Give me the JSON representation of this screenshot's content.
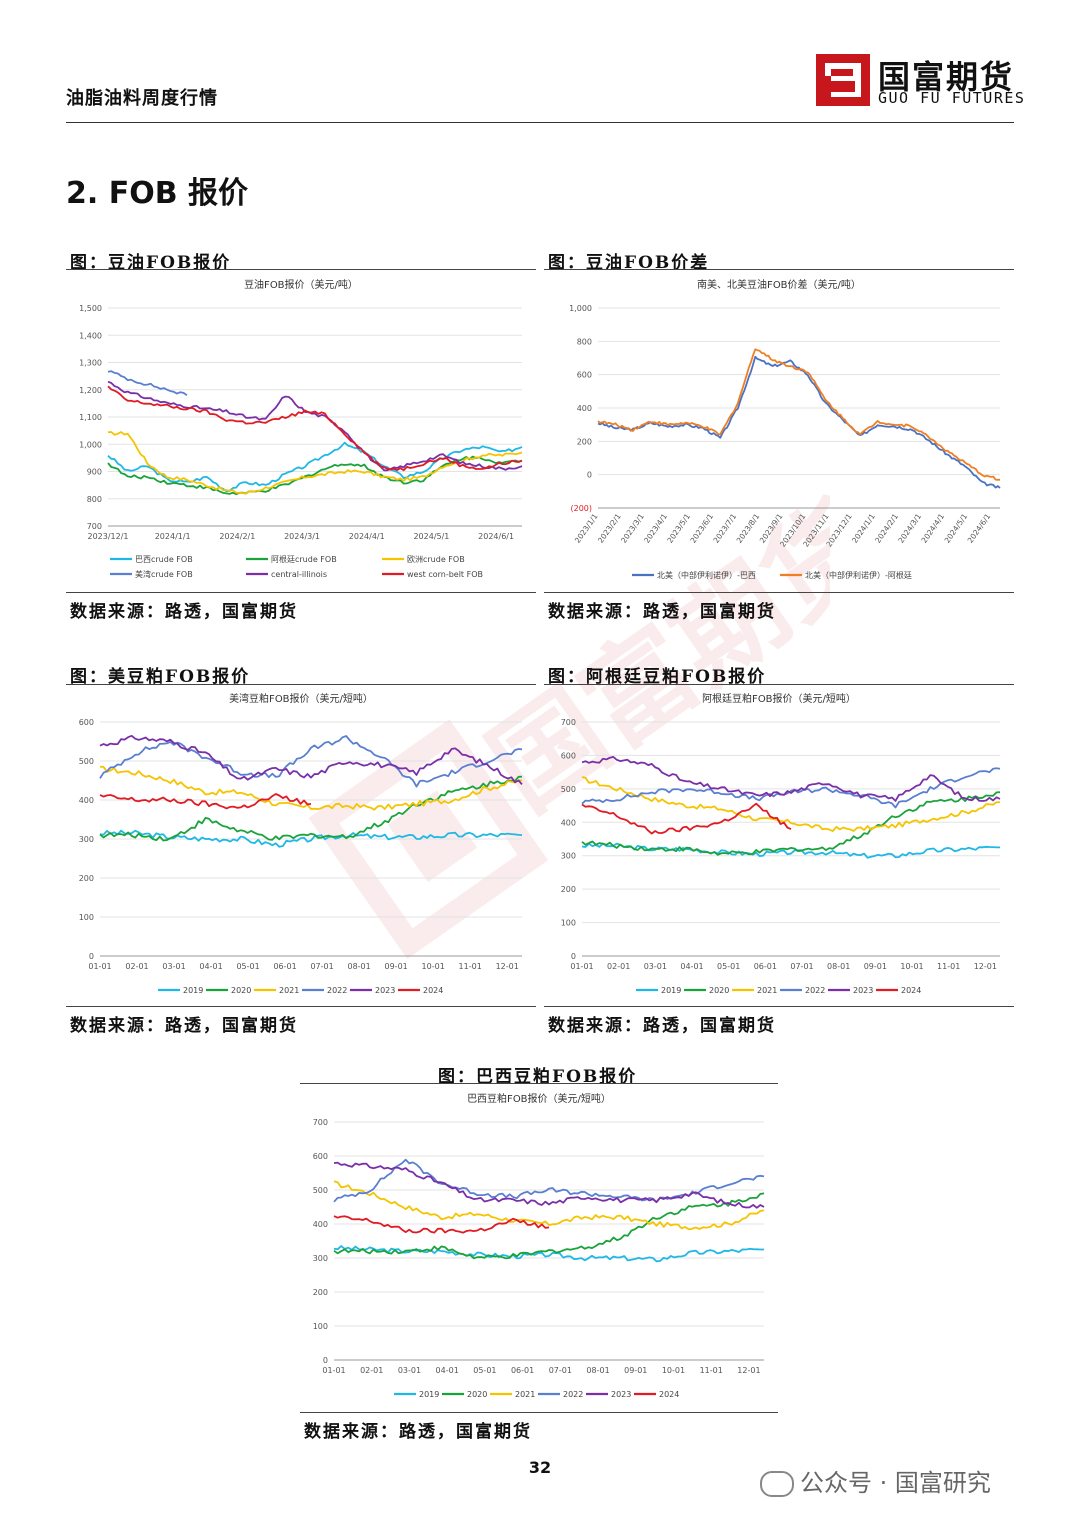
{
  "header": {
    "report_title": "油脂油料周度行情",
    "logo_cn": "国富期货",
    "logo_en": "GUO FU FUTURES",
    "brand_color": "#c8161d"
  },
  "section": {
    "title": "2.  FOB 报价"
  },
  "page_number": "32",
  "footer_wechat": "公众号 · 国富研究",
  "figures": [
    {
      "caption": "图：豆油FOB报价",
      "source": "数据来源：路透，国富期货"
    },
    {
      "caption": "图：豆油FOB价差",
      "source": "数据来源：路透，国富期货"
    },
    {
      "caption": "图：美豆粕FOB报价",
      "source": "数据来源：路透，国富期货"
    },
    {
      "caption": "图：阿根廷豆粕FOB报价",
      "source": "数据来源：路透，国富期货"
    },
    {
      "caption": "图：巴西豆粕FOB报价",
      "source": "数据来源：路透，国富期货"
    }
  ],
  "chart_data": [
    {
      "type": "line",
      "title": "豆油FOB报价（美元/吨）",
      "x_ticks": [
        "2023/12/1",
        "2024/1/1",
        "2024/2/1",
        "2024/3/1",
        "2024/4/1",
        "2024/5/1",
        "2024/6/1"
      ],
      "ylim": [
        700,
        1500
      ],
      "y_ticks": [
        "700",
        "800",
        "900",
        "1,000",
        "1,100",
        "1,200",
        "1,300",
        "1,400",
        "1,500"
      ],
      "legend_position": "bottom",
      "series": [
        {
          "name": "巴西crude FOB",
          "color": "#1fb8e6",
          "values": [
            960,
            900,
            920,
            870,
            860,
            880,
            830,
            860,
            850,
            890,
            920,
            960,
            1000,
            970,
            920,
            880,
            900,
            950,
            980,
            990,
            970,
            990
          ]
        },
        {
          "name": "阿根廷crude FOB",
          "color": "#19a33a",
          "values": [
            930,
            880,
            880,
            860,
            850,
            840,
            820,
            820,
            830,
            850,
            880,
            910,
            930,
            920,
            880,
            860,
            870,
            920,
            950,
            950,
            930,
            940
          ]
        },
        {
          "name": "欧洲crude FOB",
          "color": "#f5c400",
          "values": [
            1040,
            1040,
            930,
            880,
            870,
            850,
            830,
            820,
            840,
            860,
            880,
            890,
            900,
            900,
            880,
            870,
            880,
            920,
            940,
            960,
            960,
            970
          ]
        },
        {
          "name": "美湾crude FOB",
          "color": "#5a7fd0",
          "values": [
            1270,
            1240,
            1220,
            1200,
            1180,
            null,
            null,
            null,
            null,
            null,
            null,
            null,
            null,
            null,
            null,
            null,
            null,
            null,
            null,
            null,
            null,
            null
          ]
        },
        {
          "name": "central-illinois",
          "color": "#7a2fa8",
          "values": [
            1230,
            1190,
            1170,
            1150,
            1140,
            1130,
            1120,
            1100,
            1090,
            1180,
            1120,
            1100,
            1050,
            970,
            900,
            920,
            940,
            960,
            930,
            920,
            910,
            920
          ]
        },
        {
          "name": "west corn-belt FOB",
          "color": "#e01b24",
          "values": [
            1210,
            1160,
            1150,
            1140,
            1130,
            1120,
            1090,
            1080,
            1080,
            1100,
            1120,
            1110,
            1040,
            970,
            910,
            910,
            930,
            950,
            920,
            910,
            930,
            940
          ]
        }
      ]
    },
    {
      "type": "line",
      "title": "南美、北美豆油FOB价差（美元/吨）",
      "x_ticks": [
        "2023/1/1",
        "2023/2/1",
        "2023/3/1",
        "2023/4/1",
        "2023/5/1",
        "2023/6/1",
        "2023/7/1",
        "2023/8/1",
        "2023/9/1",
        "2023/10/1",
        "2023/11/1",
        "2023/12/1",
        "2024/1/1",
        "2024/2/1",
        "2024/3/1",
        "2024/4/1",
        "2024/5/1",
        "2024/6/1"
      ],
      "ylim": [
        -200,
        1000
      ],
      "y_ticks": [
        "(200)",
        "0",
        "200",
        "400",
        "600",
        "800",
        "1,000"
      ],
      "legend_position": "bottom",
      "series": [
        {
          "name": "北美（中部伊利诺伊）-巴西",
          "color": "#4a72c4",
          "values": [
            310,
            280,
            270,
            310,
            290,
            300,
            280,
            220,
            400,
            700,
            650,
            680,
            600,
            430,
            330,
            230,
            300,
            290,
            270,
            200,
            120,
            50,
            -50,
            -80
          ]
        },
        {
          "name": "北美（中部伊利诺伊）-阿根廷",
          "color": "#ef7f22",
          "values": [
            320,
            300,
            270,
            320,
            300,
            310,
            290,
            240,
            430,
            760,
            690,
            650,
            620,
            450,
            340,
            240,
            320,
            300,
            290,
            220,
            140,
            70,
            0,
            -30
          ]
        }
      ]
    },
    {
      "type": "line",
      "title": "美湾豆粕FOB报价（美元/短吨）",
      "x_ticks": [
        "01-01",
        "02-01",
        "03-01",
        "04-01",
        "05-01",
        "06-01",
        "07-01",
        "08-01",
        "09-01",
        "10-01",
        "11-01",
        "12-01"
      ],
      "ylim": [
        0,
        600
      ],
      "y_ticks": [
        "0",
        "100",
        "200",
        "300",
        "400",
        "500",
        "600"
      ],
      "legend_position": "bottom",
      "series": [
        {
          "name": "2019",
          "color": "#1fb8e6",
          "values": [
            315,
            315,
            305,
            300,
            300,
            285,
            300,
            310,
            305,
            305,
            310,
            310,
            310
          ]
        },
        {
          "name": "2020",
          "color": "#19a33a",
          "values": [
            310,
            310,
            300,
            350,
            320,
            300,
            310,
            305,
            340,
            390,
            420,
            440,
            460
          ]
        },
        {
          "name": "2021",
          "color": "#f5c400",
          "values": [
            480,
            470,
            450,
            420,
            420,
            390,
            380,
            385,
            380,
            390,
            400,
            430,
            450
          ]
        },
        {
          "name": "2022",
          "color": "#5a7fd0",
          "values": [
            460,
            520,
            550,
            510,
            470,
            460,
            530,
            560,
            510,
            440,
            470,
            500,
            530
          ]
        },
        {
          "name": "2023",
          "color": "#7a2fa8",
          "values": [
            540,
            560,
            550,
            520,
            450,
            480,
            460,
            500,
            490,
            470,
            530,
            490,
            440
          ]
        },
        {
          "name": "2024",
          "color": "#e01b24",
          "values": [
            410,
            400,
            400,
            390,
            380,
            410,
            390,
            null,
            null,
            null,
            null,
            null,
            null
          ]
        }
      ]
    },
    {
      "type": "line",
      "title": "阿根廷豆粕FOB报价（美元/短吨）",
      "x_ticks": [
        "01-01",
        "02-01",
        "03-01",
        "04-01",
        "05-01",
        "06-01",
        "07-01",
        "08-01",
        "09-01",
        "10-01",
        "11-01",
        "12-01"
      ],
      "ylim": [
        0,
        700
      ],
      "y_ticks": [
        "0",
        "100",
        "200",
        "300",
        "400",
        "500",
        "600",
        "700"
      ],
      "legend_position": "bottom",
      "series": [
        {
          "name": "2019",
          "color": "#1fb8e6",
          "values": [
            330,
            330,
            320,
            320,
            310,
            305,
            310,
            310,
            300,
            300,
            315,
            320,
            325
          ]
        },
        {
          "name": "2020",
          "color": "#19a33a",
          "values": [
            340,
            330,
            320,
            320,
            305,
            310,
            320,
            320,
            360,
            420,
            460,
            470,
            490
          ]
        },
        {
          "name": "2021",
          "color": "#f5c400",
          "values": [
            530,
            500,
            470,
            450,
            440,
            410,
            400,
            380,
            380,
            390,
            410,
            430,
            460
          ]
        },
        {
          "name": "2022",
          "color": "#5a7fd0",
          "values": [
            460,
            470,
            490,
            500,
            490,
            470,
            490,
            500,
            480,
            450,
            500,
            540,
            560
          ]
        },
        {
          "name": "2023",
          "color": "#7a2fa8",
          "values": [
            580,
            590,
            570,
            520,
            500,
            480,
            490,
            520,
            480,
            470,
            540,
            470,
            470
          ]
        },
        {
          "name": "2024",
          "color": "#e01b24",
          "values": [
            450,
            420,
            370,
            380,
            400,
            450,
            380,
            null,
            null,
            null,
            null,
            null,
            null
          ]
        }
      ]
    },
    {
      "type": "line",
      "title": "巴西豆粕FOB报价（美元/短吨）",
      "x_ticks": [
        "01-01",
        "02-01",
        "03-01",
        "04-01",
        "05-01",
        "06-01",
        "07-01",
        "08-01",
        "09-01",
        "10-01",
        "11-01",
        "12-01"
      ],
      "ylim": [
        0,
        700
      ],
      "y_ticks": [
        "0",
        "100",
        "200",
        "300",
        "400",
        "500",
        "600",
        "700"
      ],
      "legend_position": "bottom",
      "series": [
        {
          "name": "2019",
          "color": "#1fb8e6",
          "values": [
            330,
            325,
            320,
            320,
            310,
            305,
            310,
            300,
            300,
            295,
            315,
            320,
            325
          ]
        },
        {
          "name": "2020",
          "color": "#19a33a",
          "values": [
            320,
            320,
            320,
            330,
            300,
            305,
            320,
            330,
            360,
            420,
            450,
            460,
            490
          ]
        },
        {
          "name": "2021",
          "color": "#f5c400",
          "values": [
            520,
            490,
            450,
            420,
            430,
            410,
            400,
            420,
            420,
            400,
            390,
            400,
            440
          ]
        },
        {
          "name": "2022",
          "color": "#5a7fd0",
          "values": [
            470,
            500,
            590,
            520,
            490,
            480,
            500,
            490,
            480,
            470,
            490,
            520,
            540
          ]
        },
        {
          "name": "2023",
          "color": "#7a2fa8",
          "values": [
            580,
            570,
            560,
            520,
            470,
            470,
            460,
            480,
            470,
            470,
            490,
            460,
            450
          ]
        },
        {
          "name": "2024",
          "color": "#e01b24",
          "values": [
            420,
            410,
            380,
            380,
            380,
            410,
            390,
            null,
            null,
            null,
            null,
            null,
            null
          ]
        }
      ]
    }
  ]
}
